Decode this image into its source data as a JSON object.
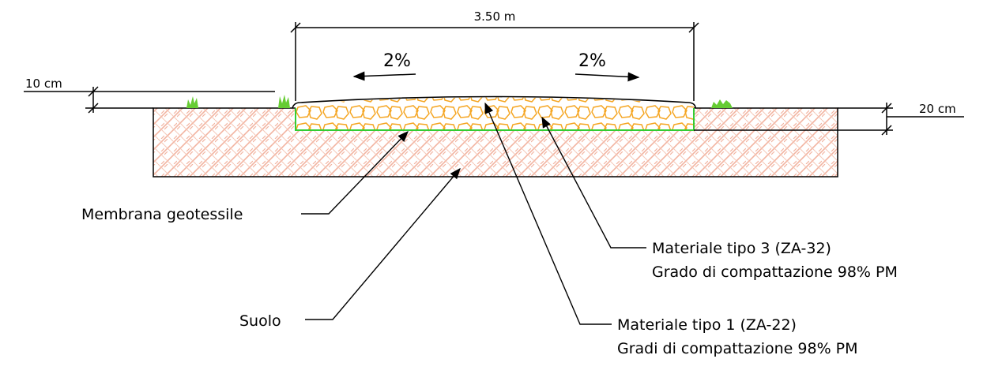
{
  "dimensions": {
    "width_label": "3.50 m",
    "left_height_label": "10 cm",
    "right_height_label": "20 cm"
  },
  "slopes": {
    "left": "2%",
    "right": "2%"
  },
  "callouts": {
    "membrane": "Membrana geotessile",
    "soil": "Suolo",
    "material3_line1": "Materiale tipo 3 (ZA-32)",
    "material3_line2": "Grado di compattazione 98% PM",
    "material1_line1": "Materiale tipo 1 (ZA-22)",
    "material1_line2": "Gradi di compattazione 98% PM"
  },
  "colors": {
    "soil_hatch": "#f2b3a0",
    "aggregate": "#f5a623",
    "membrane": "#33cc33",
    "grass": "#66cc33",
    "line": "#000000"
  }
}
